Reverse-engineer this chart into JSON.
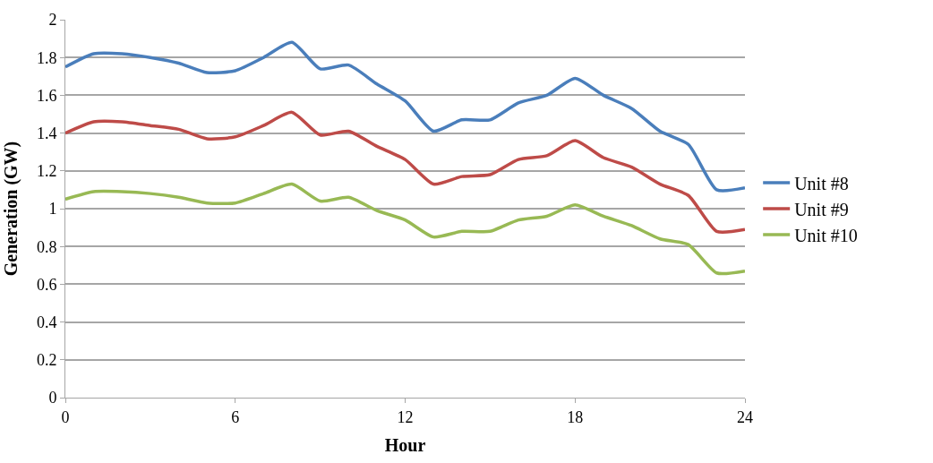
{
  "chart_data": {
    "type": "line",
    "xlabel": "Hour",
    "ylabel": "Generation (GW)",
    "x": [
      0,
      1,
      2,
      3,
      4,
      5,
      6,
      7,
      8,
      9,
      10,
      11,
      12,
      13,
      14,
      15,
      16,
      17,
      18,
      19,
      20,
      21,
      22,
      23,
      24
    ],
    "series": [
      {
        "name": "Unit #8",
        "color": "#4a7ebb",
        "values": [
          1.75,
          1.82,
          1.82,
          1.8,
          1.77,
          1.72,
          1.73,
          1.8,
          1.88,
          1.74,
          1.76,
          1.66,
          1.57,
          1.41,
          1.47,
          1.47,
          1.56,
          1.6,
          1.69,
          1.6,
          1.53,
          1.41,
          1.34,
          1.1,
          1.11
        ]
      },
      {
        "name": "Unit #9",
        "color": "#be4b48",
        "values": [
          1.4,
          1.46,
          1.46,
          1.44,
          1.42,
          1.37,
          1.38,
          1.44,
          1.51,
          1.39,
          1.41,
          1.33,
          1.26,
          1.13,
          1.17,
          1.18,
          1.26,
          1.28,
          1.36,
          1.27,
          1.22,
          1.13,
          1.07,
          0.88,
          0.89
        ]
      },
      {
        "name": "Unit #10",
        "color": "#98b954",
        "values": [
          1.05,
          1.09,
          1.09,
          1.08,
          1.06,
          1.03,
          1.03,
          1.08,
          1.13,
          1.04,
          1.06,
          0.99,
          0.94,
          0.85,
          0.88,
          0.88,
          0.94,
          0.96,
          1.02,
          0.96,
          0.91,
          0.84,
          0.81,
          0.66,
          0.67
        ]
      }
    ],
    "xlim": [
      0,
      24
    ],
    "xticks": [
      0,
      6,
      12,
      18,
      24
    ],
    "ylim": [
      0,
      2
    ],
    "yticks": [
      0,
      0.2,
      0.4,
      0.6,
      0.8,
      1,
      1.2,
      1.4,
      1.6,
      1.8,
      2
    ],
    "grid": "y",
    "legend": "right",
    "marker": "none",
    "line_style": "solid"
  }
}
